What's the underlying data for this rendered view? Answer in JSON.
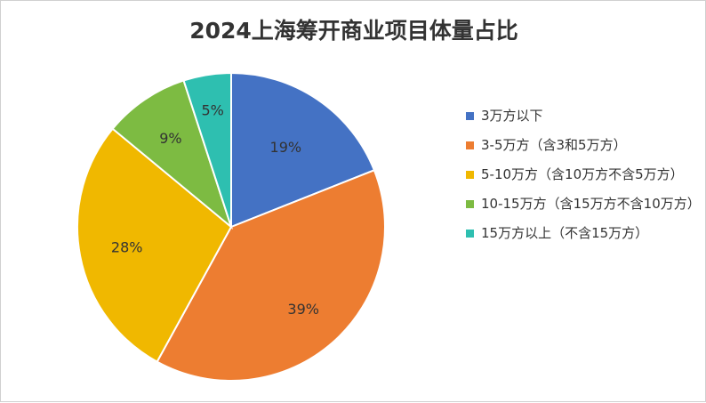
{
  "chart_data": {
    "type": "pie",
    "title": "2024上海筹开商业项目体量占比",
    "slices": [
      {
        "label": "3万方以下",
        "value": 19,
        "display": "19%",
        "color": "#4472C4"
      },
      {
        "label": "3-5万方（含3和5万方）",
        "value": 39,
        "display": "39%",
        "color": "#ED7D31"
      },
      {
        "label": "5-10万方（含10万方不含5万方）",
        "value": 28,
        "display": "28%",
        "color": "#F0B800"
      },
      {
        "label": "10-15万方（含15万方不含10万方）",
        "value": 9,
        "display": "9%",
        "color": "#7DBB42"
      },
      {
        "label": "15万方以上（不含15万方）",
        "value": 5,
        "display": "5%",
        "color": "#2EBFB0"
      }
    ],
    "legend_position": "right"
  }
}
